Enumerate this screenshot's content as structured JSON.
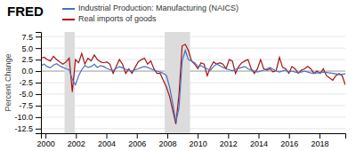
{
  "chart_data": {
    "type": "line",
    "title": "FRED",
    "ylabel": "Percent Change",
    "legend": "top",
    "grid": true,
    "xlim": [
      1999.7,
      2019.7
    ],
    "xticks": [
      2000,
      2002,
      2004,
      2006,
      2008,
      2010,
      2012,
      2014,
      2016,
      2018
    ],
    "ylim": [
      -13.5,
      8.5
    ],
    "yticks": [
      -12.5,
      {
        "value": -10,
        "label": "-10.0"
      },
      -7.5,
      {
        "value": -5,
        "label": "-5.0"
      },
      -2.5,
      {
        "value": 0,
        "label": "0.0"
      },
      2.5,
      {
        "value": 5,
        "label": "5.0"
      },
      7.5
    ],
    "bands": [
      [
        2001.25,
        2001.92
      ],
      [
        2007.83,
        2009.5
      ]
    ],
    "x": [
      1999.7,
      1999.9062,
      2000.1124,
      2000.3186,
      2000.5247,
      2000.7309,
      2000.9371,
      2001.1433,
      2001.3495,
      2001.5557,
      2001.7619,
      2001.968,
      2002.1742,
      2002.3804,
      2002.5866,
      2002.7928,
      2002.999,
      2003.2052,
      2003.4113,
      2003.6175,
      2003.8237,
      2004.0299,
      2004.2361,
      2004.4423,
      2004.6485,
      2004.8546,
      2005.0608,
      2005.267,
      2005.4732,
      2005.6794,
      2005.8856,
      2006.0918,
      2006.2979,
      2006.5041,
      2006.7103,
      2006.9165,
      2007.1227,
      2007.3289,
      2007.5351,
      2007.7412,
      2007.9474,
      2008.1536,
      2008.3598,
      2008.566,
      2008.7722,
      2008.9784,
      2009.1845,
      2009.3907,
      2009.5969,
      2009.8031,
      2010.0093,
      2010.2155,
      2010.4216,
      2010.6278,
      2010.834,
      2011.0402,
      2011.2464,
      2011.4526,
      2011.6588,
      2011.8649,
      2012.0711,
      2012.2773,
      2012.4835,
      2012.6897,
      2012.8959,
      2013.1021,
      2013.3082,
      2013.5144,
      2013.7206,
      2013.9268,
      2014.133,
      2014.3392,
      2014.5454,
      2014.7515,
      2014.9577,
      2015.1639,
      2015.3701,
      2015.5763,
      2015.7825,
      2015.9887,
      2016.1948,
      2016.401,
      2016.6072,
      2016.8134,
      2017.0196,
      2017.2258,
      2017.432,
      2017.6381,
      2017.8443,
      2018.0505,
      2018.2567,
      2018.4629,
      2018.6691,
      2018.8753,
      2019.0814,
      2019.2876,
      2019.4938,
      2019.7
    ],
    "series": [
      {
        "name": "Industrial Production: Manufacturing (NAICS)",
        "color": "#4472c4",
        "values": [
          1.2,
          1.5,
          1.0,
          0.7,
          1.3,
          1.6,
          1.1,
          0.8,
          0.5,
          0.3,
          -1.8,
          -3.0,
          -1.0,
          0.3,
          1.2,
          0.8,
          1.0,
          1.5,
          0.8,
          1.2,
          1.0,
          0.6,
          0.3,
          0.1,
          0.6,
          1.0,
          0.7,
          0.4,
          0.2,
          0.0,
          0.3,
          0.5,
          0.8,
          1.0,
          0.8,
          0.5,
          0.2,
          0.0,
          -0.2,
          -0.5,
          -1.0,
          -3.5,
          -7.0,
          -11.0,
          -8.0,
          2.2,
          4.5,
          2.5,
          2.2,
          1.8,
          1.0,
          1.2,
          0.8,
          0.5,
          0.2,
          1.0,
          1.5,
          1.2,
          0.8,
          0.5,
          0.3,
          0.1,
          0.4,
          0.6,
          0.8,
          1.0,
          0.5,
          0.2,
          0.0,
          -0.2,
          0.0,
          0.2,
          0.5,
          0.8,
          0.4,
          0.0,
          -0.2,
          0.0,
          0.2,
          -0.2,
          0.0,
          -0.2,
          -0.3,
          -0.2,
          0.0,
          -0.2,
          -0.4,
          -0.5,
          -0.4,
          -0.3,
          -0.2,
          -0.3,
          -0.4,
          -0.5,
          -0.6,
          -0.8,
          -0.7,
          -0.6
        ]
      },
      {
        "name": "Real imports of goods",
        "color": "#aa1111",
        "values": [
          2.8,
          3.0,
          2.5,
          2.2,
          3.2,
          2.5,
          2.0,
          1.5,
          2.0,
          2.8,
          -4.5,
          2.5,
          1.8,
          3.8,
          1.5,
          2.8,
          2.2,
          3.5,
          2.5,
          2.0,
          1.8,
          2.0,
          1.5,
          -0.5,
          1.0,
          2.5,
          1.5,
          -0.5,
          0.5,
          -0.5,
          0.8,
          2.0,
          2.5,
          2.8,
          1.5,
          2.2,
          0.5,
          -0.5,
          -0.5,
          -2.0,
          -3.5,
          -5.5,
          -8.5,
          -11.5,
          -5.0,
          5.5,
          5.8,
          4.5,
          2.2,
          1.5,
          0.5,
          1.8,
          1.5,
          -1.0,
          0.8,
          2.0,
          1.5,
          1.8,
          1.5,
          0.5,
          2.5,
          2.2,
          -0.5,
          1.0,
          1.8,
          2.2,
          2.5,
          0.5,
          -0.5,
          0.5,
          2.5,
          0.5,
          0.2,
          0.5,
          -0.2,
          0.2,
          3.0,
          0.8,
          0.5,
          -0.5,
          1.0,
          0.5,
          -0.5,
          0.2,
          0.5,
          1.0,
          0.5,
          -0.5,
          0.0,
          -0.5,
          0.5,
          -1.0,
          -1.5,
          -2.0,
          -1.0,
          -0.5,
          -1.0,
          -3.0
        ]
      }
    ]
  }
}
